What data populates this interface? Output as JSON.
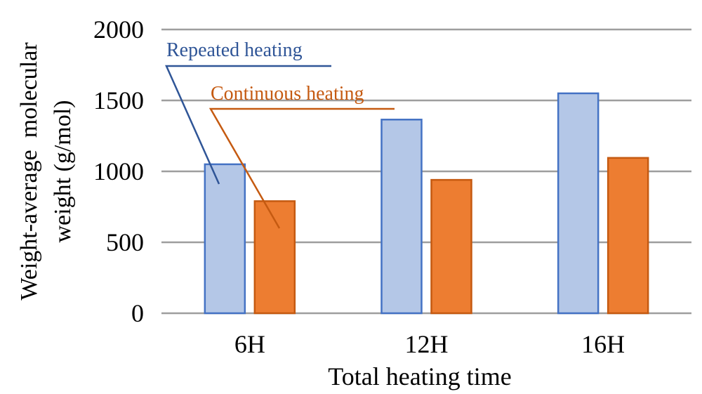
{
  "chart_data": {
    "type": "bar",
    "title": "",
    "xlabel": "Total heating time",
    "ylabel_lines": [
      "Weight-average  molecular",
      "weight (g/mol)"
    ],
    "categories": [
      "6H",
      "12H",
      "16H"
    ],
    "series": [
      {
        "name": "Repeated heating",
        "values": [
          1050,
          1365,
          1550
        ],
        "color": "#b4c7e7",
        "edge_color": "#4472c4",
        "label_color": "#2f5597"
      },
      {
        "name": "Continuous heating",
        "values": [
          790,
          940,
          1095
        ],
        "color": "#ed7d31",
        "edge_color": "#c55a11",
        "label_color": "#c55a11"
      }
    ],
    "yticks": [
      0,
      500,
      1000,
      1500,
      2000
    ],
    "ylim": [
      0,
      2000
    ],
    "grid": true,
    "legend": "callout-labels"
  }
}
